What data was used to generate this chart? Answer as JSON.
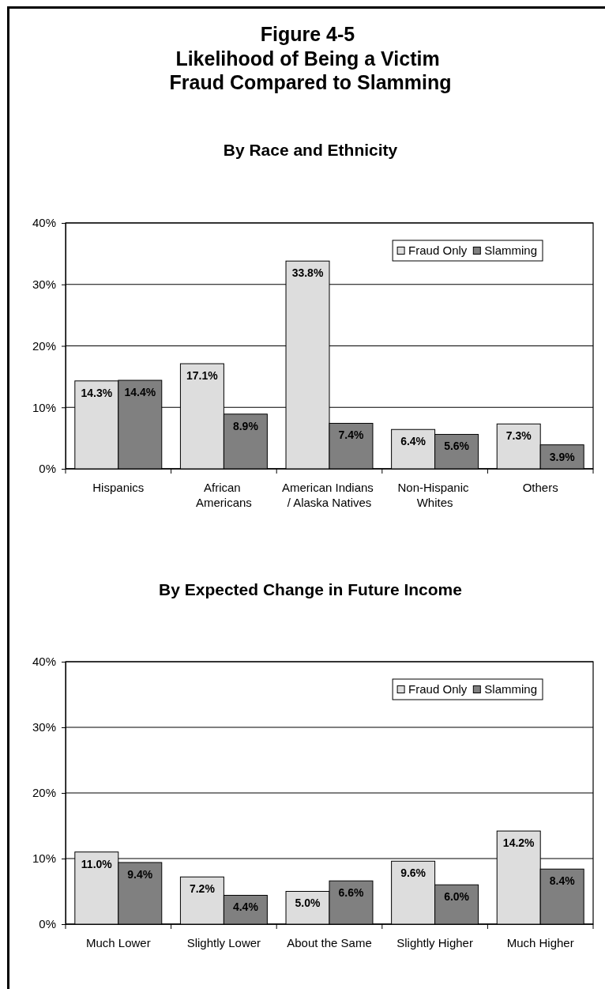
{
  "chart_data": [
    {
      "type": "bar",
      "title": "Figure 4-5\nLikelihood of Being a Victim\nFraud Compared to Slamming",
      "subtitle": "By Race and Ethnicity",
      "categories": [
        "Hispanics",
        "African\nAmericans",
        "American Indians\n/ Alaska Natives",
        "Non-Hispanic\nWhites",
        "Others"
      ],
      "series": [
        {
          "name": "Fraud Only",
          "color": "#dddddd",
          "values": [
            14.3,
            17.1,
            33.8,
            6.4,
            7.3
          ],
          "value_labels": [
            "14.3%",
            "17.1%",
            "33.8%",
            "6.4%",
            "7.3%"
          ]
        },
        {
          "name": "Slamming",
          "color": "#808080",
          "values": [
            14.4,
            8.9,
            7.4,
            5.6,
            3.9
          ],
          "value_labels": [
            "14.4%",
            "8.9%",
            "7.4%",
            "5.6%",
            "3.9%"
          ]
        }
      ],
      "ylim": [
        0,
        40
      ],
      "yticks": [
        {
          "value": 0,
          "label": "0%"
        },
        {
          "value": 10,
          "label": "10%"
        },
        {
          "value": 20,
          "label": "20%"
        },
        {
          "value": 30,
          "label": "30%"
        },
        {
          "value": 40,
          "label": "40%"
        }
      ],
      "grid": "y",
      "legend": "top right"
    },
    {
      "type": "bar",
      "subtitle": "By Expected Change in Future Income",
      "categories": [
        "Much Lower",
        "Slightly Lower",
        "About the Same",
        "Slightly Higher",
        "Much Higher"
      ],
      "series": [
        {
          "name": "Fraud Only",
          "color": "#dddddd",
          "values": [
            11.0,
            7.2,
            5.0,
            9.6,
            14.2
          ],
          "value_labels": [
            "11.0%",
            "7.2%",
            "5.0%",
            "9.6%",
            "14.2%"
          ]
        },
        {
          "name": "Slamming",
          "color": "#808080",
          "values": [
            9.4,
            4.4,
            6.6,
            6.0,
            8.4
          ],
          "value_labels": [
            "9.4%",
            "4.4%",
            "6.6%",
            "6.0%",
            "8.4%"
          ]
        }
      ],
      "ylim": [
        0,
        40
      ],
      "yticks": [
        {
          "value": 0,
          "label": "0%"
        },
        {
          "value": 10,
          "label": "10%"
        },
        {
          "value": 20,
          "label": "20%"
        },
        {
          "value": 30,
          "label": "30%"
        },
        {
          "value": 40,
          "label": "40%"
        }
      ],
      "grid": "y",
      "legend": "top right"
    }
  ]
}
